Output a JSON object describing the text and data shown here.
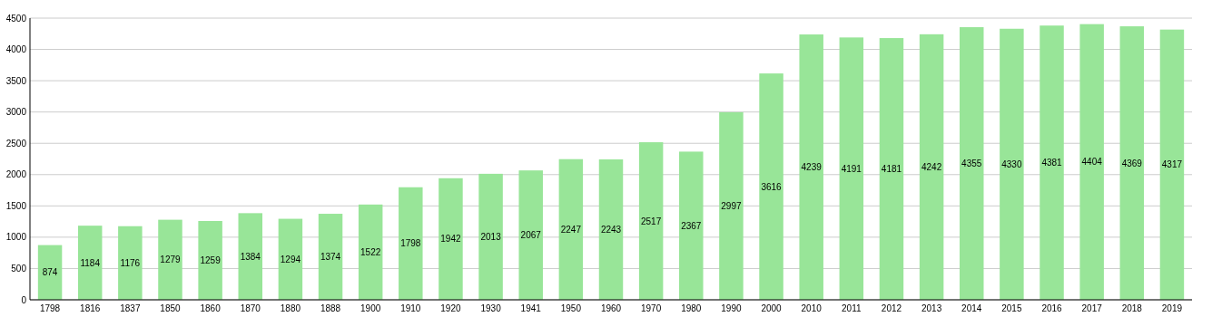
{
  "chart_data": {
    "type": "bar",
    "categories": [
      "1798",
      "1816",
      "1837",
      "1850",
      "1860",
      "1870",
      "1880",
      "1888",
      "1900",
      "1910",
      "1920",
      "1930",
      "1941",
      "1950",
      "1960",
      "1970",
      "1980",
      "1990",
      "2000",
      "2010",
      "2011",
      "2012",
      "2013",
      "2014",
      "2015",
      "2016",
      "2017",
      "2018",
      "2019"
    ],
    "values": [
      874,
      1184,
      1176,
      1279,
      1259,
      1384,
      1294,
      1374,
      1522,
      1798,
      1942,
      2013,
      2067,
      2247,
      2243,
      2517,
      2367,
      2997,
      3616,
      4239,
      4191,
      4181,
      4242,
      4355,
      4330,
      4381,
      4404,
      4369,
      4317
    ],
    "color": "#98e598",
    "ylim": [
      0,
      4500
    ],
    "yticks": [
      0,
      500,
      1000,
      1500,
      2000,
      2500,
      3000,
      3500,
      4000,
      4500
    ],
    "grid": "y",
    "data_labels": true
  }
}
